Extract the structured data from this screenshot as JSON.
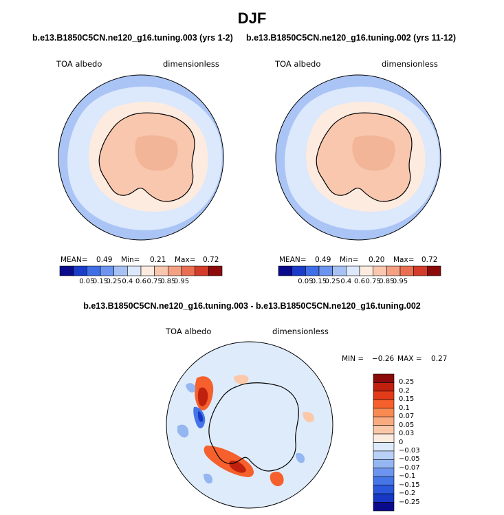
{
  "page": {
    "title": "DJF"
  },
  "panels": [
    {
      "run_label": "b.e13.B1850C5CN.ne120_g16.tuning.003 (yrs 1-2)",
      "variable": "TOA albedo",
      "units": "dimensionless",
      "mean_label": "MEAN=",
      "mean": "0.49",
      "min_label": "Min=",
      "min": "0.21",
      "max_label": "Max=",
      "max": "0.72"
    },
    {
      "run_label": "b.e13.B1850C5CN.ne120_g16.tuning.002 (yrs 11-12)",
      "variable": "TOA albedo",
      "units": "dimensionless",
      "mean_label": "MEAN=",
      "mean": "0.49",
      "min_label": "Min=",
      "min": "0.20",
      "max_label": "Max=",
      "max": "0.72"
    }
  ],
  "colorbar_abs": {
    "colors": [
      "#0a0a8c",
      "#1a3cc8",
      "#3f6fe6",
      "#6d95ef",
      "#a7c1f4",
      "#dce8fb",
      "#fdebe0",
      "#f8c7ae",
      "#f3a083",
      "#ea6f52",
      "#d33c28",
      "#8b0a0a"
    ],
    "ticks": [
      "0.05",
      "0.15",
      "0.25",
      "0.4",
      "0.6",
      "0.75",
      "0.85",
      "0.95"
    ]
  },
  "difference": {
    "label": "b.e13.B1850C5CN.ne120_g16.tuning.003 - b.e13.B1850C5CN.ne120_g16.tuning.002",
    "variable": "TOA albedo",
    "units": "dimensionless",
    "min_label": "MIN =",
    "min": "−0.26",
    "max_label": "MAX =",
    "max": "0.27"
  },
  "colorbar_diff": {
    "colors": [
      "#8b0a0a",
      "#c0210f",
      "#e23b1a",
      "#f5602c",
      "#f88a52",
      "#f9ab80",
      "#fbc9aa",
      "#fdebe0",
      "#deebfb",
      "#b9d1f6",
      "#94b6f1",
      "#6d95ef",
      "#4675e8",
      "#2a57dc",
      "#1638c4",
      "#0a0a8c"
    ],
    "ticks": [
      "0.25",
      "0.2",
      "0.15",
      "0.1",
      "0.07",
      "0.05",
      "0.03",
      "0",
      "−0.03",
      "−0.05",
      "−0.07",
      "−0.1",
      "−0.15",
      "−0.2",
      "−0.25"
    ]
  },
  "map_colors": {
    "ocean_outer": "#aac5f5",
    "ocean_pack": "#dce8fb",
    "sea_ice": "#fdebe0",
    "continent": "#f8c7ae",
    "continent_high": "#f3b597",
    "diff_base": "#deebfb"
  }
}
